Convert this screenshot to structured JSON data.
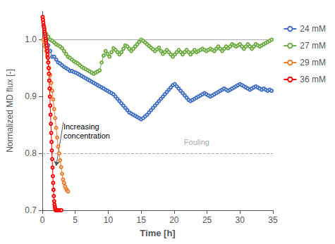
{
  "chart_data": {
    "type": "line",
    "xlabel": "Time [h]",
    "ylabel": "Normalized MD flux [-]",
    "xlim": [
      0,
      35
    ],
    "xticks": [
      0,
      5,
      10,
      15,
      20,
      25,
      30,
      35
    ],
    "ylim": [
      0.7,
      1.05
    ],
    "yticks": [
      0.7,
      0.8,
      0.9,
      {
        "value": 1.0,
        "label": "1.0"
      }
    ],
    "grid": false,
    "legend": "right",
    "marker": "circle",
    "reference_lines": [
      {
        "y": 1.0,
        "line_style": "solid"
      },
      {
        "y": 0.8,
        "line_style": "dashed"
      }
    ],
    "annotations": [
      {
        "text": "Fouling",
        "x": 21.5,
        "y": 0.812
      },
      {
        "text": "Increasing\nconcentration",
        "x": 3.2,
        "y": 0.855,
        "arrow_to": [
          2.1,
          0.778
        ]
      }
    ],
    "series": [
      {
        "name": "24 mM",
        "color": "#4472C4",
        "x": [
          0.3,
          0.6,
          0.9,
          1.2,
          1.5,
          1.8,
          2.1,
          2.4,
          2.7,
          3.0,
          3.3,
          3.6,
          3.9,
          4.2,
          4.5,
          4.8,
          5.1,
          5.4,
          5.7,
          6.0,
          6.3,
          6.6,
          6.9,
          7.2,
          7.5,
          7.8,
          8.1,
          8.4,
          8.7,
          9.0,
          9.3,
          9.6,
          9.9,
          10.2,
          10.5,
          10.8,
          11.1,
          11.4,
          11.7,
          12.0,
          12.3,
          12.6,
          12.9,
          13.2,
          13.5,
          13.8,
          14.1,
          14.4,
          14.7,
          15.0,
          15.3,
          15.6,
          15.9,
          16.2,
          16.5,
          16.8,
          17.1,
          17.4,
          17.7,
          18.0,
          18.3,
          18.6,
          18.9,
          19.2,
          19.5,
          19.8,
          20.1,
          20.4,
          20.7,
          21.0,
          21.3,
          21.6,
          21.9,
          22.2,
          22.5,
          22.8,
          23.1,
          23.4,
          23.7,
          24.0,
          24.3,
          24.6,
          24.9,
          25.2,
          25.5,
          25.8,
          26.1,
          26.4,
          26.7,
          27.0,
          27.3,
          27.6,
          27.9,
          28.2,
          28.5,
          28.8,
          29.1,
          29.4,
          29.7,
          30.0,
          30.3,
          30.6,
          30.9,
          31.2,
          31.5,
          31.8,
          32.1,
          32.4,
          32.7,
          33.0,
          33.3,
          33.6,
          33.9,
          34.2,
          34.5,
          34.8
        ],
        "values": [
          1.0,
          1.0,
          0.99,
          0.98,
          0.97,
          0.97,
          0.965,
          0.96,
          0.958,
          0.955,
          0.952,
          0.95,
          0.948,
          0.945,
          0.945,
          0.943,
          0.942,
          0.94,
          0.938,
          0.936,
          0.934,
          0.932,
          0.93,
          0.928,
          0.926,
          0.924,
          0.922,
          0.92,
          0.918,
          0.916,
          0.914,
          0.912,
          0.91,
          0.908,
          0.906,
          0.904,
          0.9,
          0.896,
          0.892,
          0.888,
          0.884,
          0.88,
          0.876,
          0.872,
          0.87,
          0.868,
          0.866,
          0.864,
          0.862,
          0.86,
          0.862,
          0.865,
          0.868,
          0.872,
          0.876,
          0.88,
          0.884,
          0.888,
          0.892,
          0.896,
          0.9,
          0.904,
          0.908,
          0.912,
          0.916,
          0.92,
          0.922,
          0.918,
          0.914,
          0.91,
          0.906,
          0.902,
          0.898,
          0.894,
          0.892,
          0.894,
          0.896,
          0.898,
          0.9,
          0.902,
          0.904,
          0.906,
          0.904,
          0.902,
          0.9,
          0.902,
          0.904,
          0.906,
          0.908,
          0.91,
          0.912,
          0.914,
          0.912,
          0.91,
          0.912,
          0.914,
          0.916,
          0.918,
          0.92,
          0.922,
          0.92,
          0.918,
          0.916,
          0.914,
          0.912,
          0.914,
          0.916,
          0.918,
          0.916,
          0.914,
          0.912,
          0.914,
          0.912,
          0.91,
          0.912,
          0.91
        ]
      },
      {
        "name": "27 mM",
        "color": "#70AD47",
        "x": [
          0.3,
          0.6,
          0.9,
          1.2,
          1.5,
          1.8,
          2.1,
          2.4,
          2.7,
          3.0,
          3.3,
          3.6,
          3.9,
          4.2,
          4.5,
          4.8,
          5.1,
          5.4,
          5.7,
          6.0,
          6.3,
          6.6,
          6.9,
          7.2,
          7.5,
          7.8,
          8.1,
          8.4,
          8.7,
          9.0,
          9.3,
          9.6,
          9.9,
          10.2,
          10.5,
          10.8,
          11.1,
          11.4,
          11.7,
          12.0,
          12.3,
          12.6,
          12.9,
          13.2,
          13.5,
          13.8,
          14.1,
          14.4,
          14.7,
          15.0,
          15.3,
          15.6,
          15.9,
          16.2,
          16.5,
          16.8,
          17.1,
          17.4,
          17.7,
          18.0,
          18.3,
          18.6,
          18.9,
          19.2,
          19.5,
          19.8,
          20.1,
          20.4,
          20.7,
          21.0,
          21.3,
          21.6,
          21.9,
          22.2,
          22.5,
          22.8,
          23.1,
          23.4,
          23.7,
          24.0,
          24.3,
          24.6,
          24.9,
          25.2,
          25.5,
          25.8,
          26.1,
          26.4,
          26.7,
          27.0,
          27.3,
          27.6,
          27.9,
          28.2,
          28.5,
          28.8,
          29.1,
          29.4,
          29.7,
          30.0,
          30.3,
          30.6,
          30.9,
          31.2,
          31.5,
          31.8,
          32.1,
          32.4,
          32.7,
          33.0,
          33.3,
          33.6,
          33.9,
          34.2,
          34.5,
          34.8
        ],
        "values": [
          1.02,
          1.01,
          1.005,
          1.0,
          0.998,
          0.995,
          0.992,
          0.99,
          0.988,
          0.985,
          0.98,
          0.975,
          0.97,
          0.968,
          0.965,
          0.962,
          0.96,
          0.958,
          0.955,
          0.952,
          0.95,
          0.948,
          0.946,
          0.944,
          0.942,
          0.94,
          0.942,
          0.944,
          0.946,
          0.96,
          0.972,
          0.98,
          0.975,
          0.97,
          0.978,
          0.985,
          0.982,
          0.978,
          0.974,
          0.978,
          0.984,
          0.99,
          0.988,
          0.984,
          0.98,
          0.984,
          0.988,
          0.992,
          0.996,
          1.0,
          0.998,
          0.995,
          0.992,
          0.989,
          0.986,
          0.983,
          0.98,
          0.983,
          0.986,
          0.98,
          0.975,
          0.978,
          0.982,
          0.978,
          0.974,
          0.97,
          0.974,
          0.978,
          0.982,
          0.978,
          0.974,
          0.978,
          0.982,
          0.978,
          0.974,
          0.978,
          0.982,
          0.978,
          0.98,
          0.982,
          0.984,
          0.982,
          0.98,
          0.982,
          0.984,
          0.982,
          0.98,
          0.984,
          0.988,
          0.984,
          0.98,
          0.984,
          0.988,
          0.985,
          0.988,
          0.992,
          0.99,
          0.988,
          0.99,
          0.992,
          0.988,
          0.984,
          0.988,
          0.992,
          0.988,
          0.984,
          0.988,
          0.992,
          0.99,
          0.988,
          0.99,
          0.992,
          0.994,
          0.996,
          0.998,
          1.0
        ]
      },
      {
        "name": "29 mM",
        "color": "#ED7D31",
        "x": [
          0.15,
          0.3,
          0.45,
          0.6,
          0.75,
          0.9,
          1.05,
          1.2,
          1.35,
          1.5,
          1.65,
          1.8,
          1.95,
          2.1,
          2.25,
          2.4,
          2.55,
          2.7,
          2.85,
          3.0,
          3.15,
          3.3,
          3.45,
          3.6,
          3.75,
          3.9
        ],
        "values": [
          1.0,
          0.995,
          0.988,
          0.98,
          0.97,
          0.96,
          0.95,
          0.938,
          0.924,
          0.91,
          0.895,
          0.878,
          0.862,
          0.845,
          0.828,
          0.812,
          0.8,
          0.788,
          0.776,
          0.764,
          0.754,
          0.748,
          0.742,
          0.738,
          0.735,
          0.733
        ]
      },
      {
        "name": "36 mM",
        "color": "#FF0000",
        "x": [
          0.05,
          0.1,
          0.15,
          0.2,
          0.25,
          0.3,
          0.35,
          0.4,
          0.45,
          0.5,
          0.55,
          0.6,
          0.65,
          0.7,
          0.75,
          0.8,
          0.85,
          0.9,
          0.95,
          1.0,
          1.05,
          1.1,
          1.15,
          1.2,
          1.25,
          1.3,
          1.35,
          1.4,
          1.45,
          1.5,
          1.55,
          1.6,
          1.65,
          1.7,
          1.75,
          1.8,
          1.85,
          1.9,
          1.95,
          2.0,
          2.1,
          2.2,
          2.3,
          2.5,
          2.7,
          2.9
        ],
        "values": [
          1.04,
          1.035,
          1.03,
          1.025,
          1.022,
          1.018,
          1.014,
          1.01,
          1.006,
          1.002,
          0.998,
          0.994,
          0.99,
          0.985,
          0.98,
          0.974,
          0.968,
          0.96,
          0.95,
          0.94,
          0.928,
          0.914,
          0.9,
          0.884,
          0.868,
          0.852,
          0.836,
          0.82,
          0.805,
          0.79,
          0.775,
          0.76,
          0.748,
          0.736,
          0.725,
          0.716,
          0.71,
          0.706,
          0.703,
          0.7,
          0.7,
          0.7,
          0.7,
          0.7,
          0.7,
          0.7
        ]
      }
    ]
  }
}
